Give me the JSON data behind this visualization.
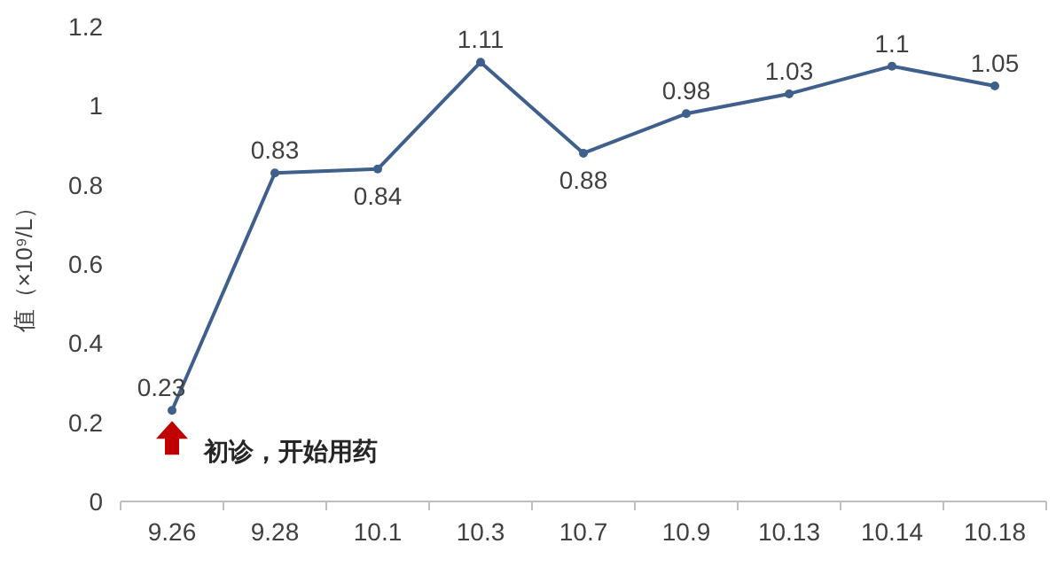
{
  "chart_data": {
    "type": "line",
    "ylabel": "值（×10⁹/L）",
    "categories": [
      "9.26",
      "9.28",
      "10.1",
      "10.3",
      "10.7",
      "10.9",
      "10.13",
      "10.14",
      "10.18"
    ],
    "series": [
      {
        "color": "#3f5f8c",
        "values": [
          0.23,
          0.83,
          0.84,
          1.11,
          0.88,
          0.98,
          1.03,
          1.1,
          1.05
        ]
      }
    ],
    "ylim": [
      0,
      1.2
    ],
    "yticks": [
      0,
      0.2,
      0.4,
      0.6,
      0.8,
      1,
      1.2
    ],
    "marker": "circle",
    "line_style": "solid",
    "data_labels": true,
    "grid": false,
    "annotations": [
      {
        "text": "初诊，开始用药",
        "x": "9.26",
        "y": 0.23
      }
    ]
  }
}
